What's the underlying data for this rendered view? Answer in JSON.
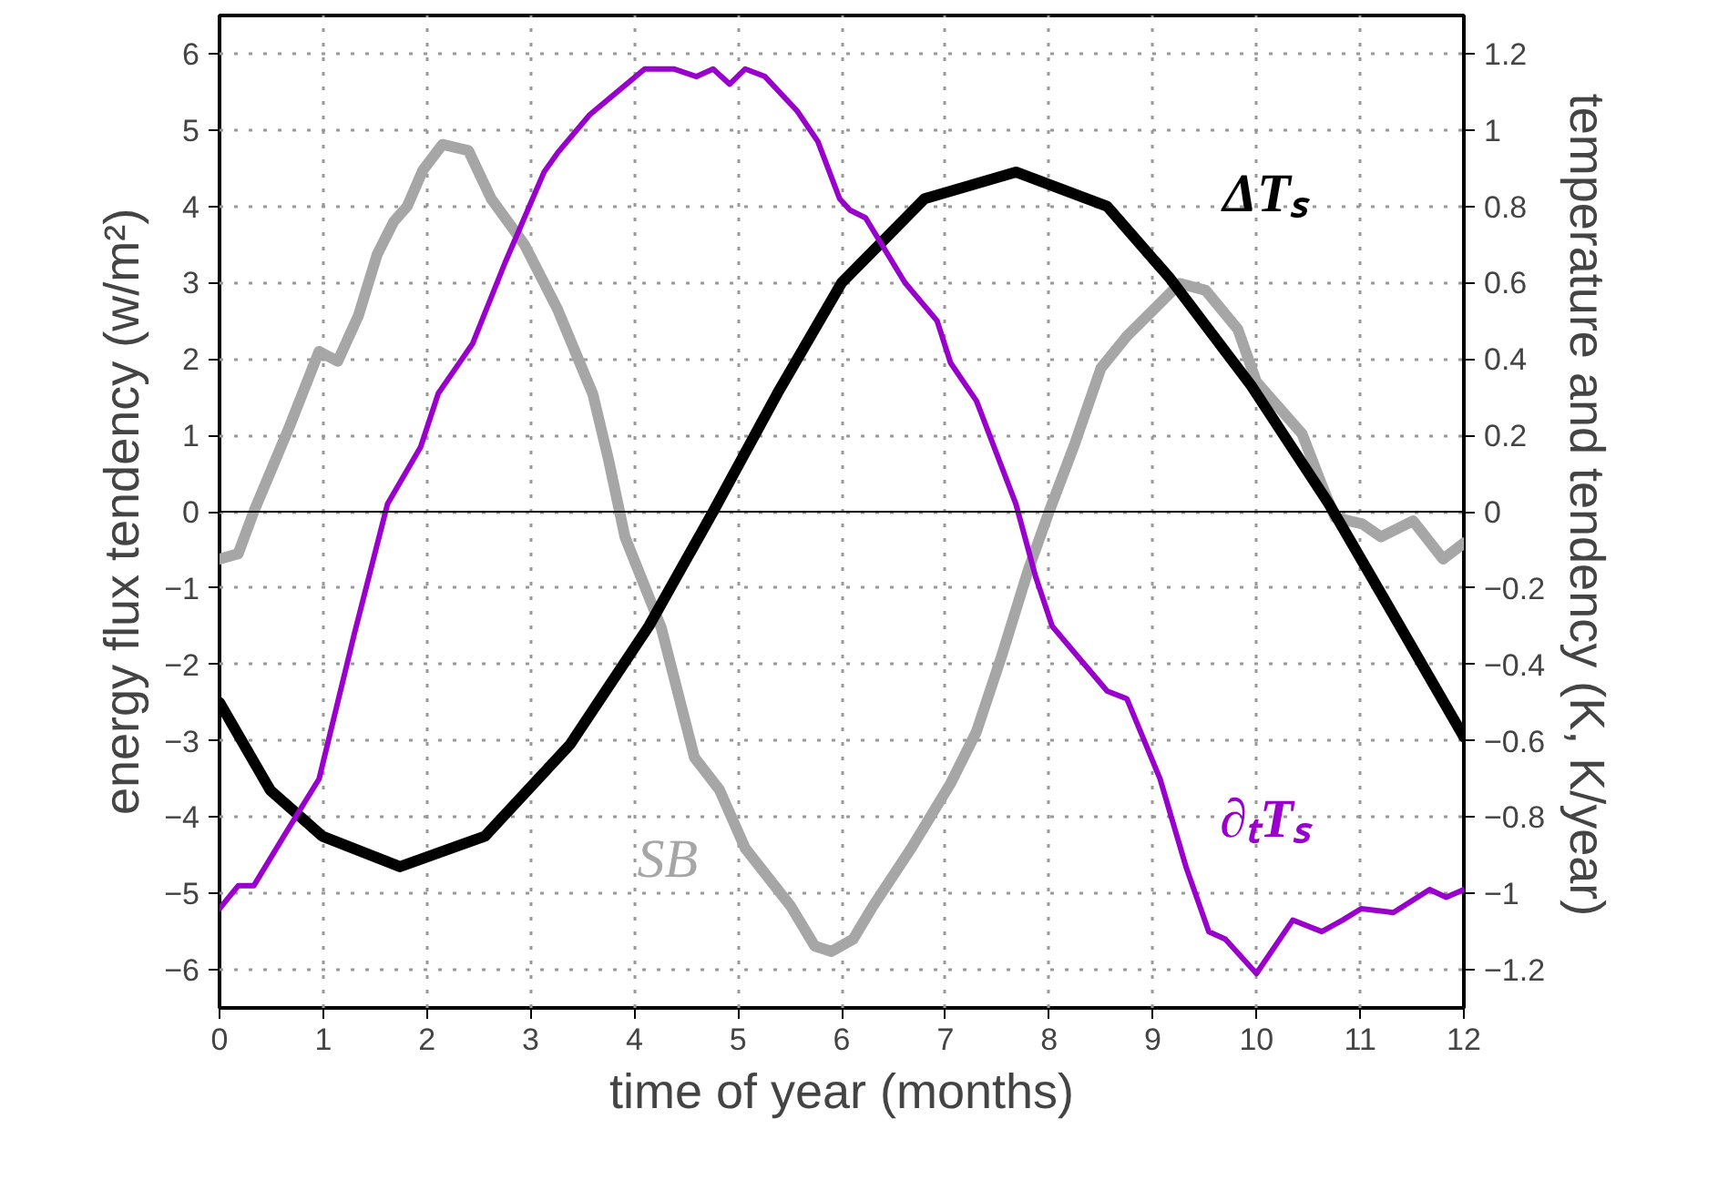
{
  "chart_data": {
    "type": "line",
    "xlabel": "time of year (months)",
    "ylabel": "energy flux tendency (w/m²)",
    "y2label": "temperature and  tendency (K, K/year)",
    "xlim": [
      0,
      12
    ],
    "xticks": [
      0,
      1,
      2,
      3,
      4,
      5,
      6,
      7,
      8,
      9,
      10,
      11,
      12
    ],
    "ylim": [
      -6.5,
      6.5
    ],
    "yticks": [
      {
        "value": -6,
        "label": "−6"
      },
      {
        "value": -5,
        "label": "−5"
      },
      {
        "value": -4,
        "label": "−4"
      },
      {
        "value": -3,
        "label": "−3"
      },
      {
        "value": -2,
        "label": "−2"
      },
      {
        "value": -1,
        "label": "−1"
      },
      0,
      1,
      2,
      3,
      4,
      5,
      6
    ],
    "y2lim": [
      -1.3,
      1.3
    ],
    "y2ticks": [
      {
        "value": -1.2,
        "label": "−1.2"
      },
      {
        "value": -1,
        "label": "−1"
      },
      {
        "value": -0.8,
        "label": "−0.8"
      },
      {
        "value": -0.6,
        "label": "−0.6"
      },
      {
        "value": -0.4,
        "label": "−0.4"
      },
      {
        "value": -0.2,
        "label": "−0.2"
      },
      0,
      0.2,
      0.4,
      0.6,
      0.8,
      1,
      1.2
    ],
    "grid": true,
    "marker": "none",
    "line_style": "solid",
    "ref_lines": [
      {
        "axis": "y",
        "value": 0,
        "color": "#000000"
      }
    ],
    "series": [
      {
        "name": "SB",
        "color": "#a6a6a6",
        "axis": "y",
        "x": [
          0,
          0.18,
          0.33,
          0.67,
          0.96,
          1.14,
          1.34,
          1.52,
          1.68,
          1.81,
          1.96,
          2.15,
          2.4,
          2.62,
          2.94,
          3.26,
          3.6,
          3.75,
          3.91,
          4.26,
          4.58,
          4.82,
          5.07,
          5.51,
          5.74,
          5.9,
          6.11,
          6.3,
          6.67,
          7.05,
          7.3,
          7.55,
          7.8,
          8.0,
          8.24,
          8.5,
          8.75,
          9.07,
          9.26,
          9.51,
          9.82,
          10.0,
          10.44,
          10.63,
          10.76,
          11.02,
          11.2,
          11.51,
          11.8,
          12
        ],
        "values": [
          -0.62,
          -0.55,
          0,
          1.1,
          2.1,
          1.97,
          2.57,
          3.37,
          3.8,
          4.0,
          4.47,
          4.81,
          4.73,
          4.1,
          3.5,
          2.65,
          1.54,
          0.69,
          -0.33,
          -1.52,
          -3.22,
          -3.64,
          -4.41,
          -5.17,
          -5.69,
          -5.76,
          -5.6,
          -5.17,
          -4.41,
          -3.56,
          -2.88,
          -1.86,
          -0.76,
          0,
          0.86,
          1.88,
          2.3,
          2.73,
          2.99,
          2.9,
          2.39,
          1.7,
          1.02,
          0.35,
          -0.08,
          -0.16,
          -0.33,
          -0.12,
          -0.62,
          -0.41
        ]
      },
      {
        "name": "ΔTₛ",
        "color": "#000000",
        "axis": "y2",
        "x": [
          0,
          0.49,
          0.99,
          1.74,
          2.56,
          3.38,
          4.14,
          4.76,
          5.38,
          6.0,
          6.8,
          7.68,
          8.56,
          9.17,
          9.95,
          10.7,
          11.32,
          12
        ],
        "values": [
          -0.5,
          -0.73,
          -0.85,
          -0.93,
          -0.85,
          -0.61,
          -0.3,
          0,
          0.31,
          0.6,
          0.82,
          0.89,
          0.8,
          0.61,
          0.33,
          0.02,
          -0.27,
          -0.59
        ]
      },
      {
        "name": "∂ₜTₛ",
        "color": "#9900cc",
        "axis": "y2",
        "x": [
          0,
          0.18,
          0.33,
          0.62,
          0.96,
          1.3,
          1.62,
          1.94,
          2.11,
          2.44,
          2.75,
          3.13,
          3.26,
          3.57,
          3.88,
          4.1,
          4.38,
          4.6,
          4.76,
          4.92,
          5.07,
          5.26,
          5.57,
          5.77,
          5.98,
          6.08,
          6.23,
          6.61,
          6.92,
          7.05,
          7.3,
          7.68,
          7.87,
          8.03,
          8.31,
          8.56,
          8.75,
          9.07,
          9.32,
          9.54,
          9.7,
          10.0,
          10.35,
          10.63,
          10.83,
          11.01,
          11.32,
          11.67,
          11.83,
          12
        ],
        "values": [
          -1.04,
          -0.98,
          -0.98,
          -0.85,
          -0.7,
          -0.32,
          0.02,
          0.17,
          0.31,
          0.44,
          0.65,
          0.89,
          0.94,
          1.04,
          1.11,
          1.16,
          1.16,
          1.14,
          1.16,
          1.12,
          1.16,
          1.14,
          1.05,
          0.97,
          0.82,
          0.79,
          0.77,
          0.6,
          0.5,
          0.39,
          0.29,
          0.02,
          -0.17,
          -0.3,
          -0.39,
          -0.47,
          -0.49,
          -0.7,
          -0.93,
          -1.1,
          -1.12,
          -1.21,
          -1.07,
          -1.1,
          -1.07,
          -1.04,
          -1.05,
          -0.99,
          -1.01,
          -0.99
        ]
      }
    ]
  }
}
